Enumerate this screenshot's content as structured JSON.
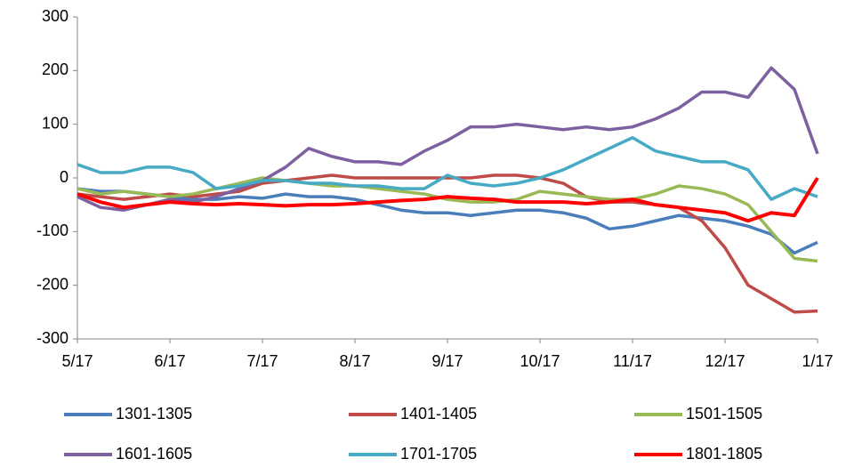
{
  "chart_data": {
    "type": "line",
    "x": [
      0,
      0.25,
      0.5,
      0.75,
      1,
      1.25,
      1.5,
      1.75,
      2,
      2.25,
      2.5,
      2.75,
      3,
      3.25,
      3.5,
      3.75,
      4,
      4.25,
      4.5,
      4.75,
      5,
      5.25,
      5.5,
      5.75,
      6,
      6.25,
      6.5,
      6.75,
      7,
      7.25,
      7.5,
      7.75,
      8
    ],
    "xlim": [
      0,
      8
    ],
    "xticks": [
      {
        "value": 0,
        "label": "5/17"
      },
      {
        "value": 1,
        "label": "6/17"
      },
      {
        "value": 2,
        "label": "7/17"
      },
      {
        "value": 3,
        "label": "8/17"
      },
      {
        "value": 4,
        "label": "9/17"
      },
      {
        "value": 5,
        "label": "10/17"
      },
      {
        "value": 6,
        "label": "11/17"
      },
      {
        "value": 7,
        "label": "12/17"
      },
      {
        "value": 8,
        "label": "1/17"
      }
    ],
    "ylim": [
      -300,
      300
    ],
    "yticks": [
      -300,
      -200,
      -100,
      0,
      100,
      200,
      300
    ],
    "series": [
      {
        "name": "1301-1305",
        "color": "#4a7ebb",
        "values": [
          -20,
          -25,
          -25,
          -30,
          -35,
          -40,
          -40,
          -35,
          -38,
          -30,
          -35,
          -35,
          -40,
          -50,
          -60,
          -65,
          -65,
          -70,
          -65,
          -60,
          -60,
          -65,
          -75,
          -95,
          -90,
          -80,
          -70,
          -75,
          -80,
          -90,
          -105,
          -140,
          -120
        ]
      },
      {
        "name": "1401-1405",
        "color": "#be4b48",
        "values": [
          -30,
          -35,
          -40,
          -35,
          -30,
          -35,
          -30,
          -25,
          -10,
          -5,
          0,
          5,
          0,
          0,
          0,
          0,
          0,
          0,
          5,
          5,
          0,
          -10,
          -35,
          -45,
          -45,
          -50,
          -55,
          -80,
          -130,
          -200,
          -225,
          -250,
          -248
        ]
      },
      {
        "name": "1501-1505",
        "color": "#98b954",
        "values": [
          -20,
          -30,
          -25,
          -30,
          -35,
          -30,
          -20,
          -10,
          0,
          -5,
          -10,
          -15,
          -15,
          -20,
          -25,
          -30,
          -40,
          -45,
          -45,
          -40,
          -25,
          -30,
          -35,
          -40,
          -40,
          -30,
          -15,
          -20,
          -30,
          -50,
          -100,
          -150,
          -155
        ]
      },
      {
        "name": "1601-1605",
        "color": "#7d60a0",
        "values": [
          -35,
          -55,
          -60,
          -50,
          -40,
          -45,
          -35,
          -20,
          -5,
          20,
          55,
          40,
          30,
          30,
          25,
          50,
          70,
          95,
          95,
          100,
          95,
          90,
          95,
          90,
          95,
          110,
          130,
          160,
          160,
          150,
          205,
          165,
          45
        ]
      },
      {
        "name": "1701-1705",
        "color": "#46aac5",
        "values": [
          25,
          10,
          10,
          20,
          20,
          10,
          -20,
          -15,
          -5,
          -5,
          -10,
          -10,
          -15,
          -15,
          -20,
          -20,
          5,
          -10,
          -15,
          -10,
          0,
          15,
          35,
          55,
          75,
          50,
          40,
          30,
          30,
          15,
          -40,
          -20,
          -35
        ]
      },
      {
        "name": "1801-1805",
        "color": "#ff0000",
        "values": [
          -30,
          -45,
          -55,
          -50,
          -45,
          -48,
          -50,
          -48,
          -50,
          -52,
          -50,
          -50,
          -48,
          -45,
          -42,
          -40,
          -35,
          -38,
          -40,
          -45,
          -45,
          -45,
          -48,
          -45,
          -40,
          -50,
          -55,
          -60,
          -65,
          -80,
          -65,
          -70,
          0
        ]
      }
    ]
  }
}
